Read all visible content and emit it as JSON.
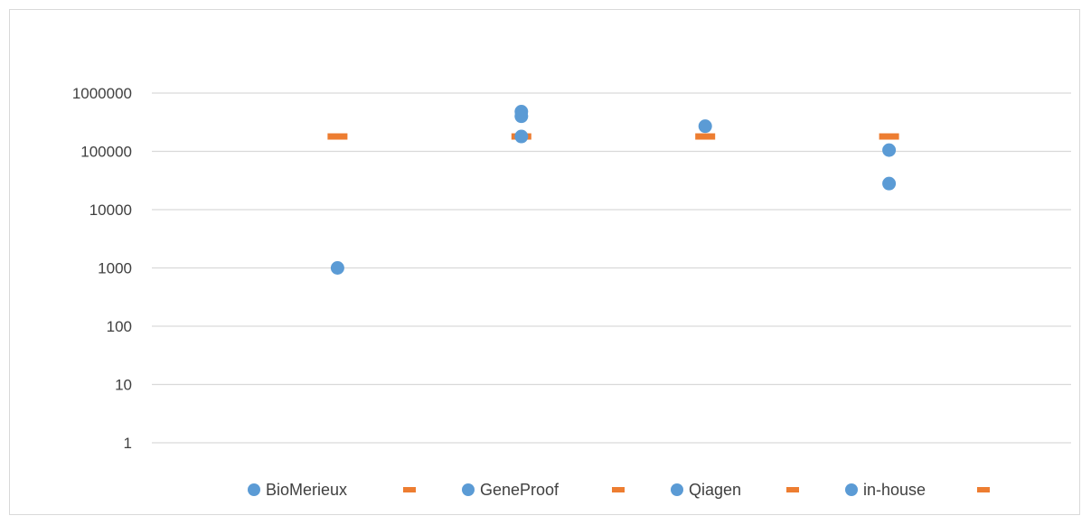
{
  "chart_data": {
    "type": "scatter",
    "title": "",
    "xlabel": "",
    "ylabel": "",
    "yscale": "log",
    "ylim": [
      1,
      1000000
    ],
    "y_ticks": [
      "1",
      "10",
      "100",
      "1000",
      "10000",
      "100000",
      "1000000"
    ],
    "grid": "horizontal",
    "legend_position": "bottom",
    "colors": {
      "points": "#5B9BD5",
      "markers": "#ED7D31",
      "grid": "#d9d9d9",
      "text": "#404040"
    },
    "groups": [
      {
        "name": "BioMerieux",
        "points": [
          1000
        ],
        "marker": 180000
      },
      {
        "name": "GeneProof",
        "points": [
          480000,
          400000,
          180000
        ],
        "marker": 180000
      },
      {
        "name": "Qiagen",
        "points": [
          270000
        ],
        "marker": 180000
      },
      {
        "name": "in-house",
        "points": [
          105000,
          28000
        ],
        "marker": 180000
      }
    ]
  }
}
